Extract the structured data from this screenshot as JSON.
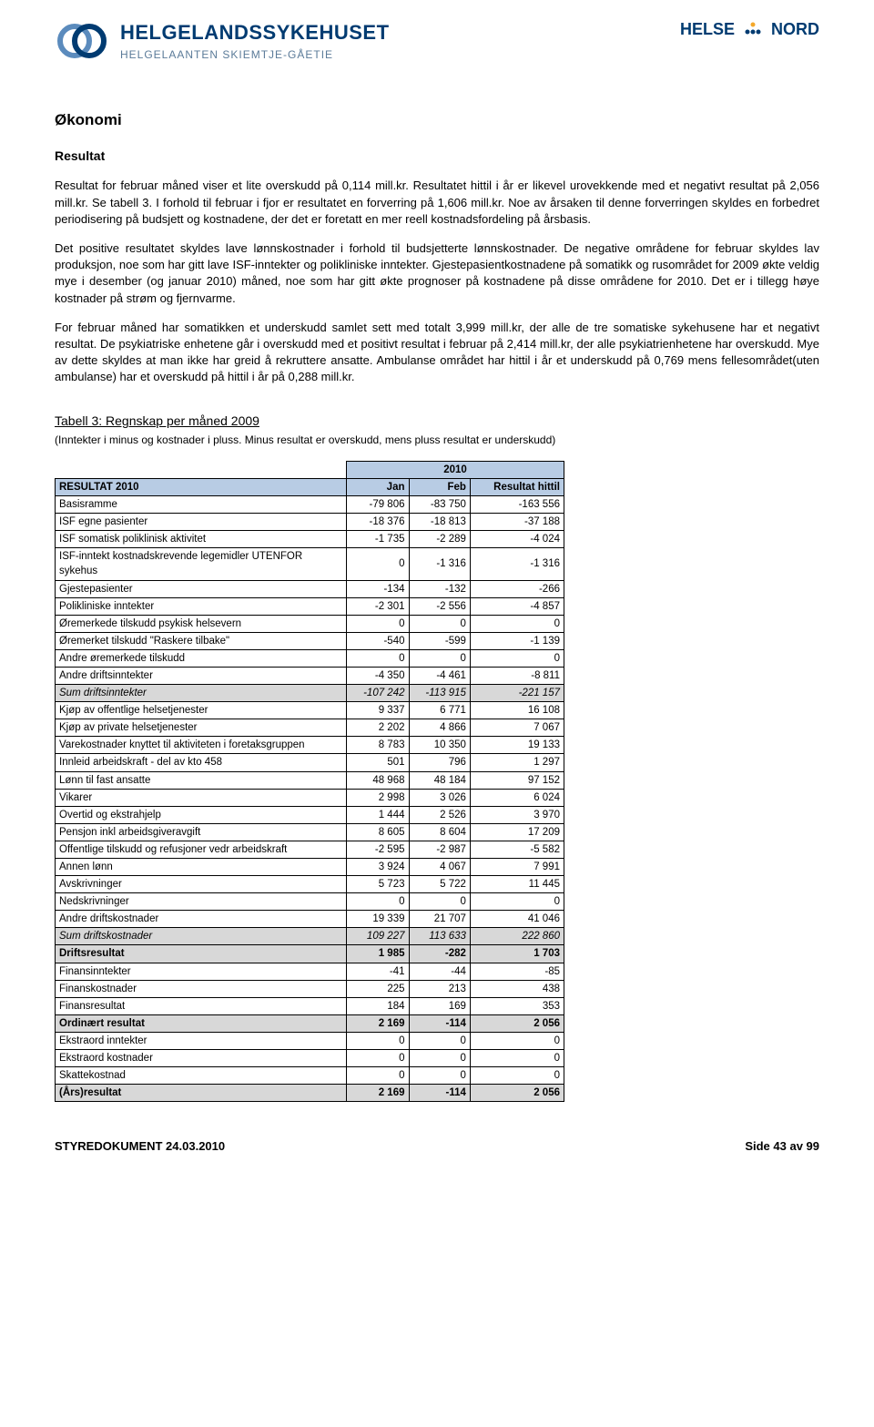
{
  "header": {
    "logo_main": "HELGELANDSSYKEHUSET",
    "logo_sub": "HELGELAANTEN SKIEMTJE-GÅETIE",
    "right_brand_1": "HELSE",
    "right_brand_2": "NORD"
  },
  "section_title": "Økonomi",
  "subsection_title": "Resultat",
  "paragraphs": [
    "Resultat for februar måned viser et lite overskudd på 0,114 mill.kr. Resultatet hittil i år er likevel urovekkende med et negativt resultat på 2,056 mill.kr. Se tabell 3. I forhold til februar i fjor er resultatet en forverring på 1,606 mill.kr. Noe av årsaken til denne forverringen skyldes en forbedret periodisering på budsjett og kostnadene, der det er foretatt en mer reell kostnadsfordeling på årsbasis.",
    "Det positive resultatet skyldes lave lønnskostnader i forhold til budsjetterte lønnskostnader. De negative områdene for februar skyldes lav produksjon, noe som har gitt lave ISF-inntekter og polikliniske inntekter. Gjestepasientkostnadene på somatikk og rusområdet for 2009 økte veldig mye i desember (og januar 2010) måned, noe som har gitt økte prognoser på kostnadene på disse områdene for 2010. Det er i tillegg høye kostnader på strøm og fjernvarme.",
    "For februar måned har somatikken et underskudd samlet sett med totalt 3,999 mill.kr, der alle de tre somatiske sykehusene har et negativt resultat. De psykiatriske enhetene går i overskudd med et positivt resultat i februar på 2,414 mill.kr, der alle psykiatrienhetene har overskudd. Mye av dette skyldes at man ikke har greid å rekruttere ansatte. Ambulanse området har hittil i år et underskudd på 0,769 mens fellesområdet(uten ambulanse) har et overskudd på hittil i år på 0,288 mill.kr."
  ],
  "table_title": "Tabell 3: Regnskap per måned 2009",
  "table_note": "(Inntekter i minus og kostnader i pluss. Minus resultat er overskudd, mens pluss resultat er underskudd)",
  "table": {
    "year_label": "2010",
    "columns": [
      "RESULTAT 2010",
      "Jan",
      "Feb",
      "Resultat hittil"
    ],
    "rows": [
      {
        "label": "Basisramme",
        "jan": "-79 806",
        "feb": "-83 750",
        "tot": "-163 556",
        "style": ""
      },
      {
        "label": "ISF egne pasienter",
        "jan": "-18 376",
        "feb": "-18 813",
        "tot": "-37 188",
        "style": ""
      },
      {
        "label": "ISF somatisk poliklinisk aktivitet",
        "jan": "-1 735",
        "feb": "-2 289",
        "tot": "-4 024",
        "style": ""
      },
      {
        "label": "ISF-inntekt kostnadskrevende legemidler UTENFOR sykehus",
        "jan": "0",
        "feb": "-1 316",
        "tot": "-1 316",
        "style": ""
      },
      {
        "label": "Gjestepasienter",
        "jan": "-134",
        "feb": "-132",
        "tot": "-266",
        "style": ""
      },
      {
        "label": "Polikliniske inntekter",
        "jan": "-2 301",
        "feb": "-2 556",
        "tot": "-4 857",
        "style": ""
      },
      {
        "label": "Øremerkede tilskudd psykisk helsevern",
        "jan": "0",
        "feb": "0",
        "tot": "0",
        "style": ""
      },
      {
        "label": "Øremerket tilskudd \"Raskere tilbake\"",
        "jan": "-540",
        "feb": "-599",
        "tot": "-1 139",
        "style": ""
      },
      {
        "label": "Andre øremerkede tilskudd",
        "jan": "0",
        "feb": "0",
        "tot": "0",
        "style": ""
      },
      {
        "label": "Andre driftsinntekter",
        "jan": "-4 350",
        "feb": "-4 461",
        "tot": "-8 811",
        "style": ""
      },
      {
        "label": "Sum driftsinntekter",
        "jan": "-107 242",
        "feb": "-113 915",
        "tot": "-221 157",
        "style": "sum"
      },
      {
        "label": "Kjøp av offentlige helsetjenester",
        "jan": "9 337",
        "feb": "6 771",
        "tot": "16 108",
        "style": ""
      },
      {
        "label": "Kjøp av private helsetjenester",
        "jan": "2 202",
        "feb": "4 866",
        "tot": "7 067",
        "style": ""
      },
      {
        "label": "Varekostnader knyttet til aktiviteten i foretaksgruppen",
        "jan": "8 783",
        "feb": "10 350",
        "tot": "19 133",
        "style": ""
      },
      {
        "label": "Innleid arbeidskraft - del av kto 458",
        "jan": "501",
        "feb": "796",
        "tot": "1 297",
        "style": ""
      },
      {
        "label": "Lønn til fast ansatte",
        "jan": "48 968",
        "feb": "48 184",
        "tot": "97 152",
        "style": ""
      },
      {
        "label": "Vikarer",
        "jan": "2 998",
        "feb": "3 026",
        "tot": "6 024",
        "style": ""
      },
      {
        "label": "Overtid og ekstrahjelp",
        "jan": "1 444",
        "feb": "2 526",
        "tot": "3 970",
        "style": ""
      },
      {
        "label": "Pensjon inkl arbeidsgiveravgift",
        "jan": "8 605",
        "feb": "8 604",
        "tot": "17 209",
        "style": ""
      },
      {
        "label": "Offentlige tilskudd og refusjoner vedr arbeidskraft",
        "jan": "-2 595",
        "feb": "-2 987",
        "tot": "-5 582",
        "style": ""
      },
      {
        "label": "Annen lønn",
        "jan": "3 924",
        "feb": "4 067",
        "tot": "7 991",
        "style": ""
      },
      {
        "label": "Avskrivninger",
        "jan": "5 723",
        "feb": "5 722",
        "tot": "11 445",
        "style": ""
      },
      {
        "label": "Nedskrivninger",
        "jan": "0",
        "feb": "0",
        "tot": "0",
        "style": ""
      },
      {
        "label": "Andre driftskostnader",
        "jan": "19 339",
        "feb": "21 707",
        "tot": "41 046",
        "style": ""
      },
      {
        "label": "Sum driftskostnader",
        "jan": "109 227",
        "feb": "113 633",
        "tot": "222 860",
        "style": "sum"
      },
      {
        "label": "Driftsresultat",
        "jan": "1 985",
        "feb": "-282",
        "tot": "1 703",
        "style": "bold"
      },
      {
        "label": "Finansinntekter",
        "jan": "-41",
        "feb": "-44",
        "tot": "-85",
        "style": ""
      },
      {
        "label": "Finanskostnader",
        "jan": "225",
        "feb": "213",
        "tot": "438",
        "style": ""
      },
      {
        "label": "Finansresultat",
        "jan": "184",
        "feb": "169",
        "tot": "353",
        "style": ""
      },
      {
        "label": "Ordinært resultat",
        "jan": "2 169",
        "feb": "-114",
        "tot": "2 056",
        "style": "bold"
      },
      {
        "label": "Ekstraord inntekter",
        "jan": "0",
        "feb": "0",
        "tot": "0",
        "style": ""
      },
      {
        "label": "Ekstraord kostnader",
        "jan": "0",
        "feb": "0",
        "tot": "0",
        "style": ""
      },
      {
        "label": "Skattekostnad",
        "jan": "0",
        "feb": "0",
        "tot": "0",
        "style": ""
      },
      {
        "label": "(Års)resultat",
        "jan": "2 169",
        "feb": "-114",
        "tot": "2 056",
        "style": "bold"
      }
    ]
  },
  "footer": {
    "left": "STYREDOKUMENT 24.03.2010",
    "right": "Side 43 av 99"
  },
  "colors": {
    "header_blue": "#003b71",
    "table_header_bg": "#b8cce4",
    "table_sum_bg": "#d8d8d8"
  }
}
